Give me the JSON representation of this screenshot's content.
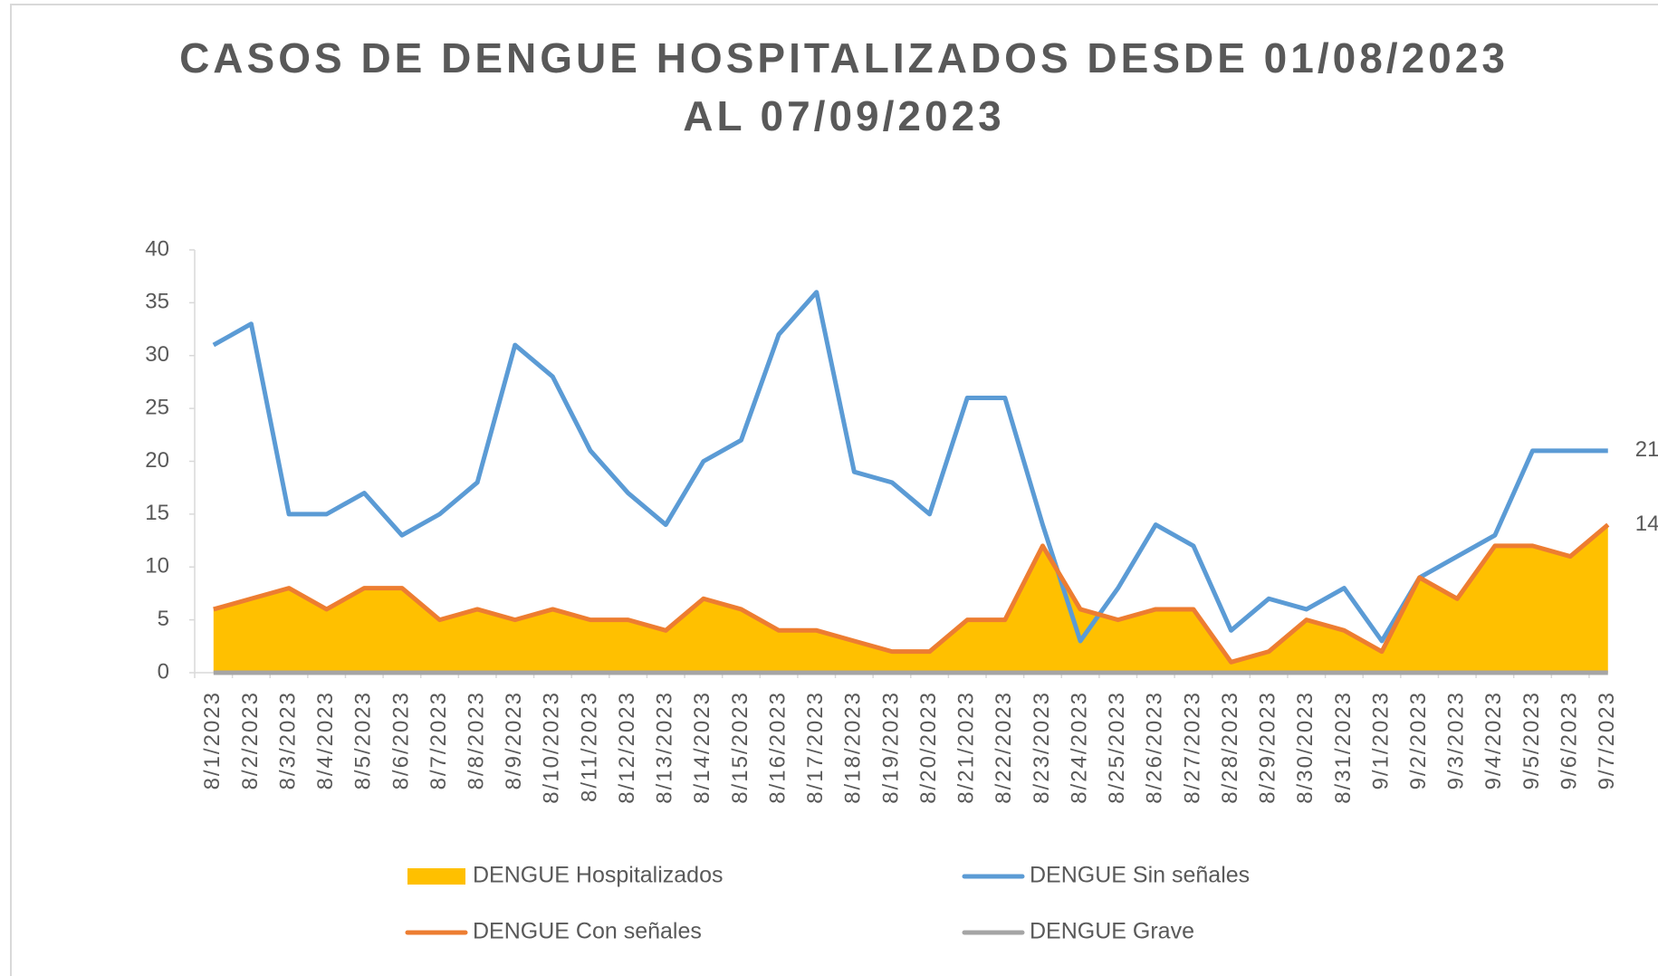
{
  "chart_data": {
    "type": "line",
    "title": "CASOS DE DENGUE HOSPITALIZADOS DESDE 01/08/2023",
    "subtitle": "AL 07/09/2023",
    "categories": [
      "8/1/2023",
      "8/2/2023",
      "8/3/2023",
      "8/4/2023",
      "8/5/2023",
      "8/6/2023",
      "8/7/2023",
      "8/8/2023",
      "8/9/2023",
      "8/10/2023",
      "8/11/2023",
      "8/12/2023",
      "8/13/2023",
      "8/14/2023",
      "8/15/2023",
      "8/16/2023",
      "8/17/2023",
      "8/18/2023",
      "8/19/2023",
      "8/20/2023",
      "8/21/2023",
      "8/22/2023",
      "8/23/2023",
      "8/24/2023",
      "8/25/2023",
      "8/26/2023",
      "8/27/2023",
      "8/28/2023",
      "8/29/2023",
      "8/30/2023",
      "8/31/2023",
      "9/1/2023",
      "9/2/2023",
      "9/3/2023",
      "9/4/2023",
      "9/5/2023",
      "9/6/2023",
      "9/7/2023"
    ],
    "series": [
      {
        "name": "DENGUE Hospitalizados",
        "color": "#ffc000",
        "kind": "area",
        "values": [
          6,
          7,
          8,
          6,
          8,
          8,
          5,
          6,
          5,
          6,
          5,
          5,
          4,
          7,
          6,
          4,
          4,
          3,
          2,
          2,
          5,
          5,
          12,
          6,
          5,
          6,
          6,
          1,
          2,
          5,
          4,
          2,
          9,
          7,
          12,
          12,
          11,
          14
        ]
      },
      {
        "name": "DENGUE Sin señales",
        "color": "#5b9bd5",
        "kind": "line",
        "last_label": true,
        "values": [
          31,
          33,
          15,
          15,
          17,
          13,
          15,
          18,
          31,
          28,
          21,
          17,
          14,
          20,
          22,
          32,
          36,
          19,
          18,
          15,
          26,
          26,
          14,
          3,
          8,
          14,
          12,
          4,
          7,
          6,
          8,
          3,
          9,
          11,
          13,
          21,
          21,
          21
        ]
      },
      {
        "name": "DENGUE Con señales",
        "color": "#ed7d31",
        "kind": "line",
        "last_label": true,
        "values": [
          6,
          7,
          8,
          6,
          8,
          8,
          5,
          6,
          5,
          6,
          5,
          5,
          4,
          7,
          6,
          4,
          4,
          3,
          2,
          2,
          5,
          5,
          12,
          6,
          5,
          6,
          6,
          1,
          2,
          5,
          4,
          2,
          9,
          7,
          12,
          12,
          11,
          14
        ]
      },
      {
        "name": "DENGUE Grave",
        "color": "#a5a5a5",
        "kind": "line",
        "values": [
          0,
          0,
          0,
          0,
          0,
          0,
          0,
          0,
          0,
          0,
          0,
          0,
          0,
          0,
          0,
          0,
          0,
          0,
          0,
          0,
          0,
          0,
          0,
          0,
          0,
          0,
          0,
          0,
          0,
          0,
          0,
          0,
          0,
          0,
          0,
          0,
          0,
          0
        ]
      }
    ],
    "ylim": [
      0,
      40
    ],
    "yticks": [
      0,
      5,
      10,
      15,
      20,
      25,
      30,
      35,
      40
    ],
    "grid": false
  }
}
